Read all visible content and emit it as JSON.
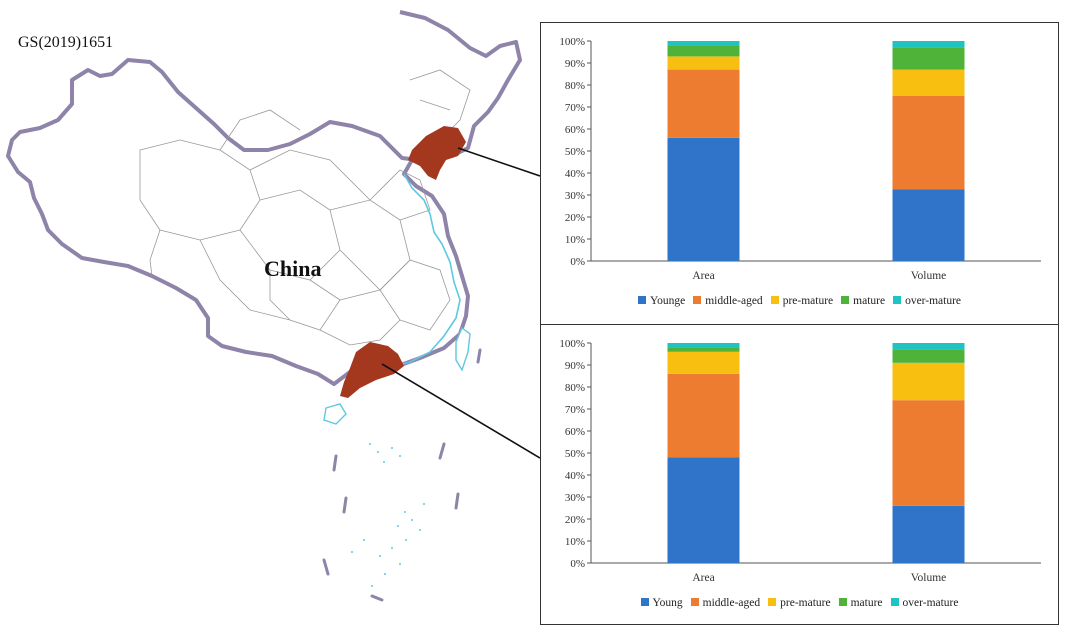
{
  "map": {
    "code": "GS(2019)1651",
    "label": "China",
    "border_color": "#8e83a8",
    "region_color": "#a3381f",
    "coast_color": "#5ec8e0"
  },
  "chart_data": [
    {
      "type": "bar",
      "stacked": true,
      "categories": [
        "Area",
        "Volume"
      ],
      "series": [
        {
          "name": "Younge",
          "color": "#2f74c9",
          "values": [
            56,
            32.5
          ]
        },
        {
          "name": "middle-aged",
          "color": "#ee7c30",
          "values": [
            31,
            42.5
          ]
        },
        {
          "name": "pre-mature",
          "color": "#f8bf11",
          "values": [
            6,
            12
          ]
        },
        {
          "name": "mature",
          "color": "#4fb33a",
          "values": [
            5,
            10
          ]
        },
        {
          "name": "over-mature",
          "color": "#1fc3c0",
          "values": [
            2,
            3
          ]
        }
      ],
      "yticks": [
        "0%",
        "10%",
        "20%",
        "30%",
        "40%",
        "50%",
        "60%",
        "70%",
        "80%",
        "90%",
        "100%"
      ],
      "ylim": [
        0,
        100
      ],
      "legend_position": "bottom"
    },
    {
      "type": "bar",
      "stacked": true,
      "categories": [
        "Area",
        "Volume"
      ],
      "series": [
        {
          "name": "Young",
          "color": "#2f74c9",
          "values": [
            48,
            26
          ]
        },
        {
          "name": "middle-aged",
          "color": "#ee7c30",
          "values": [
            38,
            48
          ]
        },
        {
          "name": "pre-mature",
          "color": "#f8bf11",
          "values": [
            10,
            17
          ]
        },
        {
          "name": "mature",
          "color": "#4fb33a",
          "values": [
            2,
            6
          ]
        },
        {
          "name": "over-mature",
          "color": "#1fc3c0",
          "values": [
            2,
            3
          ]
        }
      ],
      "yticks": [
        "0%",
        "10%",
        "20%",
        "30%",
        "40%",
        "50%",
        "60%",
        "70%",
        "80%",
        "90%",
        "100%"
      ],
      "ylim": [
        0,
        100
      ],
      "legend_position": "bottom"
    }
  ]
}
